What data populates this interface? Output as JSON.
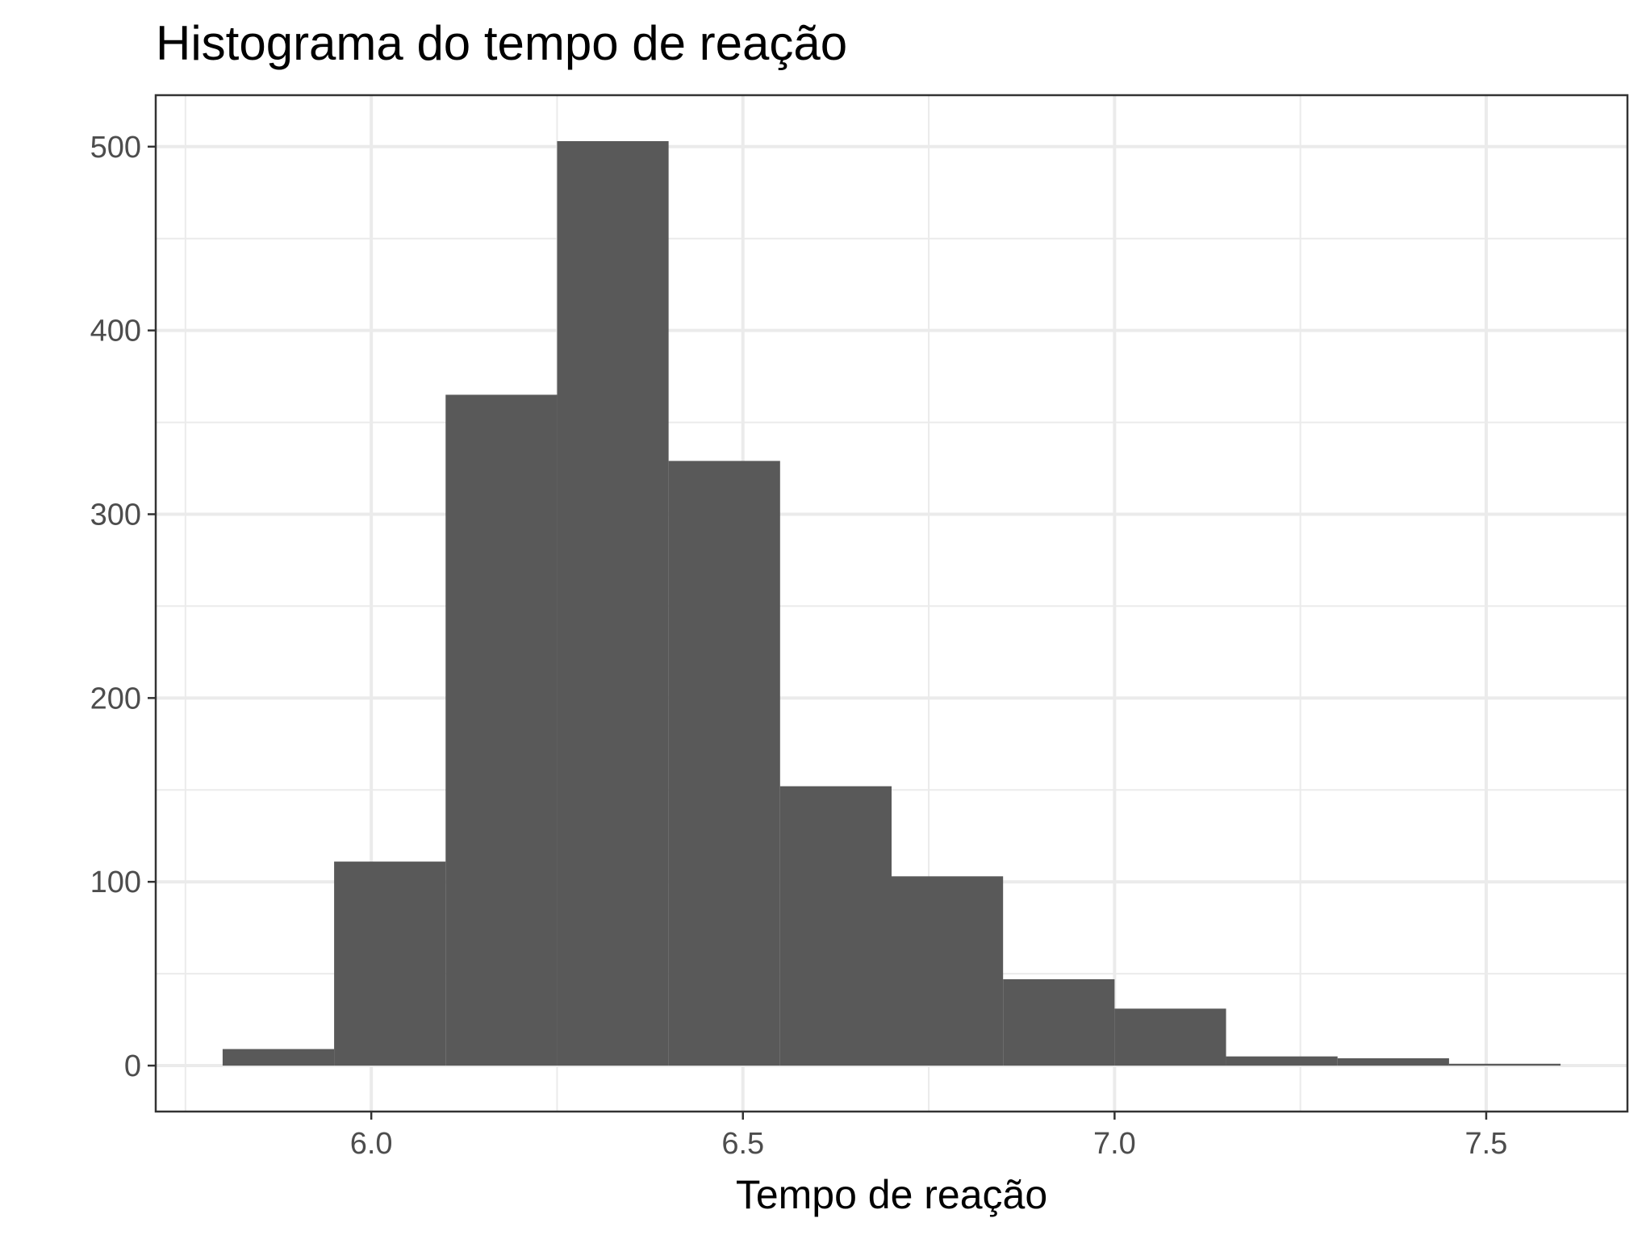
{
  "chart_data": {
    "type": "bar",
    "title": "Histograma do tempo de reação",
    "xlabel": "Tempo de reação",
    "ylabel": "",
    "bin_edges": [
      5.8,
      5.95,
      6.1,
      6.25,
      6.4,
      6.55,
      6.7,
      6.85,
      7.0,
      7.15,
      7.3,
      7.45,
      7.6
    ],
    "values": [
      9,
      111,
      365,
      503,
      329,
      152,
      103,
      47,
      31,
      5,
      4,
      1
    ],
    "xlim": [
      5.71,
      7.69
    ],
    "ylim": [
      -25,
      528
    ],
    "x_ticks": [
      "6.0",
      "6.5",
      "7.0",
      "7.5"
    ],
    "y_ticks": [
      "0",
      "100",
      "200",
      "300",
      "400",
      "500"
    ],
    "grid": true,
    "colors": {
      "bar": "#595959",
      "grid": "#ebebeb",
      "panel_border": "#333333",
      "tick_text": "#4d4d4d"
    }
  }
}
